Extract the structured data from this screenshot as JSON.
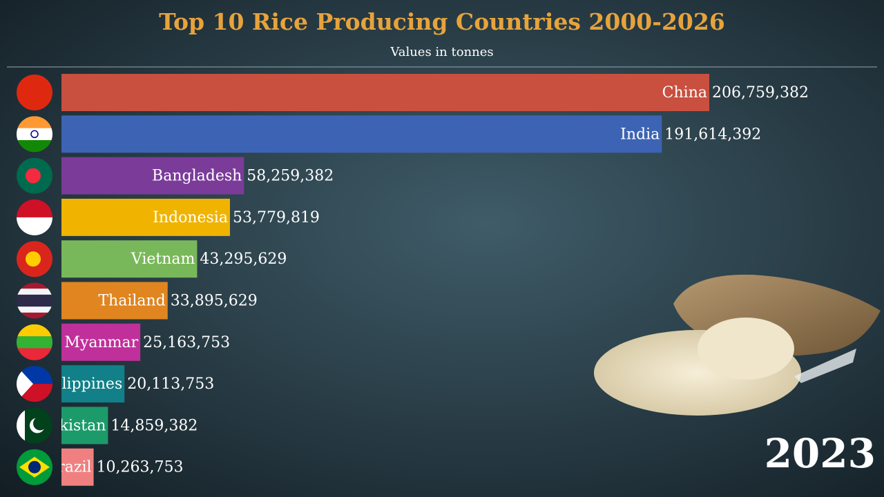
{
  "chart_data": {
    "type": "bar",
    "orientation": "horizontal",
    "title": "Top 10 Rice Producing Countries 2000-2026",
    "subtitle": "Values in tonnes",
    "annotation": "2023",
    "categories": [
      "China",
      "India",
      "Bangladesh",
      "Indonesia",
      "Vietnam",
      "Thailand",
      "Myanmar",
      "Philippines",
      "Pakistan",
      "Brazil"
    ],
    "values": [
      206759382,
      191614392,
      58259382,
      53779819,
      43295629,
      33895629,
      25163753,
      20113753,
      14859382,
      10263753
    ],
    "value_labels": [
      "206,759,382",
      "191,614,392",
      "58,259,382",
      "53,779,819",
      "43,295,629",
      "33,895,629",
      "25,163,753",
      "20,113,753",
      "14,859,382",
      "10,263,753"
    ],
    "colors": [
      "#c94f3f",
      "#3d64b4",
      "#7b3c99",
      "#f0b400",
      "#79b85a",
      "#e08520",
      "#c0309a",
      "#118088",
      "#1c9a6a",
      "#f08080"
    ]
  }
}
